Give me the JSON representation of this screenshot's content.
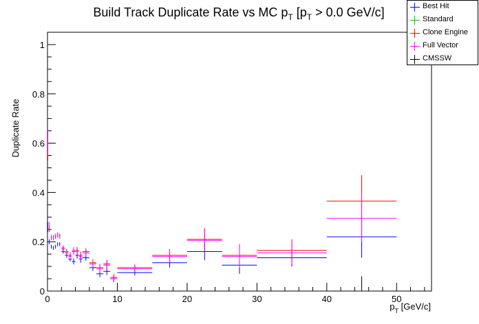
{
  "chart_data": {
    "type": "scatter",
    "title": "Build Track Duplicate Rate vs MC p",
    "title_sub1": "T",
    "title_mid": " [p",
    "title_sub2": "T",
    "title_tail": " > 0.0 GeV/c]",
    "xlabel": "p",
    "xlabel_sub": "T",
    "xlabel_tail": " [GeV/c]",
    "ylabel": "Duplicate Rate",
    "xlim": [
      0,
      55
    ],
    "ylim": [
      0,
      1.05
    ],
    "xticks": [
      0,
      10,
      20,
      30,
      40,
      50
    ],
    "yticks": [
      0,
      0.2,
      0.4,
      0.6,
      0.8,
      1
    ],
    "ytick_labels": [
      "0",
      "0.2",
      "0.4",
      "0.6",
      "0.8",
      "1"
    ],
    "legend_position": "top-right",
    "series": [
      {
        "name": "Best Hit",
        "color": "#0000ff",
        "points": [
          {
            "x": 0.05,
            "xerr": 0.05,
            "y": 0.26,
            "yerr": 0.02
          },
          {
            "x": 0.25,
            "xerr": 0.05,
            "y": 0.2,
            "yerr": 0.01
          },
          {
            "x": 0.55,
            "xerr": 0.05,
            "y": 0.18,
            "yerr": 0.008
          },
          {
            "x": 0.85,
            "xerr": 0.05,
            "y": 0.175,
            "yerr": 0.008
          },
          {
            "x": 1.15,
            "xerr": 0.05,
            "y": 0.18,
            "yerr": 0.008
          },
          {
            "x": 1.45,
            "xerr": 0.05,
            "y": 0.19,
            "yerr": 0.008
          },
          {
            "x": 1.75,
            "xerr": 0.05,
            "y": 0.19,
            "yerr": 0.008
          },
          {
            "x": 2.25,
            "xerr": 0.25,
            "y": 0.16,
            "yerr": 0.008
          },
          {
            "x": 2.75,
            "xerr": 0.25,
            "y": 0.145,
            "yerr": 0.01
          },
          {
            "x": 3.25,
            "xerr": 0.25,
            "y": 0.13,
            "yerr": 0.01
          },
          {
            "x": 3.75,
            "xerr": 0.25,
            "y": 0.12,
            "yerr": 0.012
          },
          {
            "x": 4.25,
            "xerr": 0.25,
            "y": 0.145,
            "yerr": 0.013
          },
          {
            "x": 4.75,
            "xerr": 0.25,
            "y": 0.13,
            "yerr": 0.015
          },
          {
            "x": 5.5,
            "xerr": 0.5,
            "y": 0.135,
            "yerr": 0.012
          },
          {
            "x": 6.5,
            "xerr": 0.5,
            "y": 0.095,
            "yerr": 0.013
          },
          {
            "x": 7.5,
            "xerr": 0.5,
            "y": 0.07,
            "yerr": 0.014
          },
          {
            "x": 8.5,
            "xerr": 0.5,
            "y": 0.08,
            "yerr": 0.015
          },
          {
            "x": 9.5,
            "xerr": 0.5,
            "y": 0.05,
            "yerr": 0.013
          },
          {
            "x": 12.5,
            "xerr": 2.5,
            "y": 0.075,
            "yerr": 0.012
          },
          {
            "x": 17.5,
            "xerr": 2.5,
            "y": 0.115,
            "yerr": 0.02
          },
          {
            "x": 22.5,
            "xerr": 2.5,
            "y": 0.16,
            "yerr": 0.035
          },
          {
            "x": 27.5,
            "xerr": 2.5,
            "y": 0.105,
            "yerr": 0.035
          },
          {
            "x": 35.0,
            "xerr": 5.0,
            "y": 0.135,
            "yerr": 0.035
          },
          {
            "x": 45.0,
            "xerr": 5.0,
            "y": 0.22,
            "yerr": 0.085
          }
        ]
      },
      {
        "name": "Standard",
        "color": "#00cc00",
        "points": []
      },
      {
        "name": "Clone Engine",
        "color": "#ff0000",
        "points": [
          {
            "x": 0.05,
            "xerr": 0.05,
            "y": 0.58,
            "yerr": 0.05
          },
          {
            "x": 0.25,
            "xerr": 0.05,
            "y": 0.25,
            "yerr": 0.01
          },
          {
            "x": 0.55,
            "xerr": 0.05,
            "y": 0.215,
            "yerr": 0.008
          },
          {
            "x": 0.85,
            "xerr": 0.05,
            "y": 0.215,
            "yerr": 0.008
          },
          {
            "x": 1.15,
            "xerr": 0.05,
            "y": 0.22,
            "yerr": 0.008
          },
          {
            "x": 1.45,
            "xerr": 0.05,
            "y": 0.23,
            "yerr": 0.008
          },
          {
            "x": 1.75,
            "xerr": 0.05,
            "y": 0.225,
            "yerr": 0.008
          },
          {
            "x": 2.25,
            "xerr": 0.25,
            "y": 0.175,
            "yerr": 0.01
          },
          {
            "x": 2.75,
            "xerr": 0.25,
            "y": 0.16,
            "yerr": 0.01
          },
          {
            "x": 3.25,
            "xerr": 0.25,
            "y": 0.145,
            "yerr": 0.012
          },
          {
            "x": 3.75,
            "xerr": 0.25,
            "y": 0.16,
            "yerr": 0.013
          },
          {
            "x": 4.25,
            "xerr": 0.25,
            "y": 0.165,
            "yerr": 0.014
          },
          {
            "x": 4.75,
            "xerr": 0.25,
            "y": 0.145,
            "yerr": 0.015
          },
          {
            "x": 5.5,
            "xerr": 0.5,
            "y": 0.16,
            "yerr": 0.013
          },
          {
            "x": 6.5,
            "xerr": 0.5,
            "y": 0.115,
            "yerr": 0.015
          },
          {
            "x": 7.5,
            "xerr": 0.5,
            "y": 0.095,
            "yerr": 0.015
          },
          {
            "x": 8.5,
            "xerr": 0.5,
            "y": 0.11,
            "yerr": 0.017
          },
          {
            "x": 9.5,
            "xerr": 0.5,
            "y": 0.055,
            "yerr": 0.014
          },
          {
            "x": 12.5,
            "xerr": 2.5,
            "y": 0.095,
            "yerr": 0.013
          },
          {
            "x": 17.5,
            "xerr": 2.5,
            "y": 0.145,
            "yerr": 0.025
          },
          {
            "x": 22.5,
            "xerr": 2.5,
            "y": 0.21,
            "yerr": 0.045
          },
          {
            "x": 27.5,
            "xerr": 2.5,
            "y": 0.145,
            "yerr": 0.045
          },
          {
            "x": 35.0,
            "xerr": 5.0,
            "y": 0.165,
            "yerr": 0.045
          },
          {
            "x": 45.0,
            "xerr": 5.0,
            "y": 0.365,
            "yerr": 0.105
          }
        ]
      },
      {
        "name": "Full Vector",
        "color": "#ff00ff",
        "points": [
          {
            "x": 0.05,
            "xerr": 0.05,
            "y": 0.6,
            "yerr": 0.05
          },
          {
            "x": 0.25,
            "xerr": 0.05,
            "y": 0.27,
            "yerr": 0.01
          },
          {
            "x": 0.55,
            "xerr": 0.05,
            "y": 0.22,
            "yerr": 0.008
          },
          {
            "x": 0.85,
            "xerr": 0.05,
            "y": 0.22,
            "yerr": 0.008
          },
          {
            "x": 1.15,
            "xerr": 0.05,
            "y": 0.225,
            "yerr": 0.008
          },
          {
            "x": 1.45,
            "xerr": 0.05,
            "y": 0.225,
            "yerr": 0.008
          },
          {
            "x": 1.75,
            "xerr": 0.05,
            "y": 0.22,
            "yerr": 0.008
          },
          {
            "x": 2.25,
            "xerr": 0.25,
            "y": 0.17,
            "yerr": 0.01
          },
          {
            "x": 2.75,
            "xerr": 0.25,
            "y": 0.155,
            "yerr": 0.01
          },
          {
            "x": 3.25,
            "xerr": 0.25,
            "y": 0.14,
            "yerr": 0.012
          },
          {
            "x": 3.75,
            "xerr": 0.25,
            "y": 0.165,
            "yerr": 0.013
          },
          {
            "x": 4.25,
            "xerr": 0.25,
            "y": 0.16,
            "yerr": 0.014
          },
          {
            "x": 4.75,
            "xerr": 0.25,
            "y": 0.14,
            "yerr": 0.015
          },
          {
            "x": 5.5,
            "xerr": 0.5,
            "y": 0.155,
            "yerr": 0.013
          },
          {
            "x": 6.5,
            "xerr": 0.5,
            "y": 0.11,
            "yerr": 0.015
          },
          {
            "x": 7.5,
            "xerr": 0.5,
            "y": 0.09,
            "yerr": 0.015
          },
          {
            "x": 8.5,
            "xerr": 0.5,
            "y": 0.105,
            "yerr": 0.017
          },
          {
            "x": 9.5,
            "xerr": 0.5,
            "y": 0.05,
            "yerr": 0.014
          },
          {
            "x": 12.5,
            "xerr": 2.5,
            "y": 0.09,
            "yerr": 0.013
          },
          {
            "x": 17.5,
            "xerr": 2.5,
            "y": 0.14,
            "yerr": 0.025
          },
          {
            "x": 22.5,
            "xerr": 2.5,
            "y": 0.205,
            "yerr": 0.045
          },
          {
            "x": 27.5,
            "xerr": 2.5,
            "y": 0.14,
            "yerr": 0.045
          },
          {
            "x": 35.0,
            "xerr": 5.0,
            "y": 0.155,
            "yerr": 0.045
          },
          {
            "x": 45.0,
            "xerr": 5.0,
            "y": 0.295,
            "yerr": 0.095
          }
        ]
      },
      {
        "name": "CMSSW",
        "color": "#000000",
        "points": [
          {
            "x": 45.0,
            "xerr": 0,
            "y": 0.0,
            "yerr": 0.06
          }
        ]
      }
    ]
  }
}
